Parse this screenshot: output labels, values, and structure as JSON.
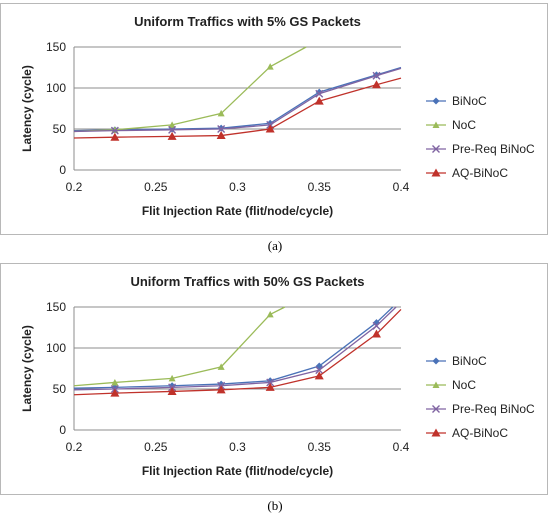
{
  "chart_data": [
    {
      "type": "line",
      "title": "Uniform Traffics with 5% GS Packets",
      "xlabel": "Flit Injection Rate (flit/node/cycle)",
      "ylabel": "Latency (cycle)",
      "xlim": [
        0.2,
        0.4
      ],
      "ylim": [
        0,
        150
      ],
      "xticks": [
        "0.2",
        "0.25",
        "0.3",
        "0.35",
        "0.4"
      ],
      "yticks": [
        "0",
        "50",
        "100",
        "150"
      ],
      "grid": "horizontal",
      "legend_position": "right",
      "series": [
        {
          "name": "BiNoC",
          "color": "#4a72b8",
          "marker": "diamond",
          "x": [
            0.2,
            0.225,
            0.26,
            0.29,
            0.32,
            0.35,
            0.385,
            0.4
          ],
          "y": [
            48,
            49,
            50,
            51,
            57,
            95,
            116,
            125
          ]
        },
        {
          "name": "NoC",
          "color": "#9bbb59",
          "marker": "triangle",
          "x": [
            0.2,
            0.225,
            0.26,
            0.29,
            0.32,
            0.342
          ],
          "y": [
            47,
            49,
            55,
            69,
            126,
            150
          ]
        },
        {
          "name": "Pre-Req BiNoC",
          "color": "#8064a2",
          "marker": "x",
          "x": [
            0.2,
            0.225,
            0.26,
            0.29,
            0.32,
            0.35,
            0.385,
            0.4
          ],
          "y": [
            47,
            48,
            49,
            50,
            55,
            93,
            115,
            124
          ]
        },
        {
          "name": "AQ-BiNoC",
          "color": "#c0322b",
          "marker": "triangle-filled",
          "x": [
            0.2,
            0.225,
            0.26,
            0.29,
            0.32,
            0.35,
            0.385,
            0.4
          ],
          "y": [
            39,
            40,
            41,
            42,
            50,
            84,
            104,
            112
          ]
        }
      ]
    },
    {
      "type": "line",
      "title": "Uniform Traffics with 50% GS Packets",
      "xlabel": "Flit Injection Rate (flit/node/cycle)",
      "ylabel": "Latency (cycle)",
      "xlim": [
        0.2,
        0.4
      ],
      "ylim": [
        0,
        150
      ],
      "xticks": [
        "0.2",
        "0.25",
        "0.3",
        "0.35",
        "0.4"
      ],
      "yticks": [
        "0",
        "50",
        "100",
        "150"
      ],
      "grid": "horizontal",
      "legend_position": "right",
      "series": [
        {
          "name": "BiNoC",
          "color": "#4a72b8",
          "marker": "diamond",
          "x": [
            0.2,
            0.225,
            0.26,
            0.29,
            0.32,
            0.35,
            0.385,
            0.395
          ],
          "y": [
            51,
            52,
            54,
            56,
            60,
            78,
            131,
            150
          ]
        },
        {
          "name": "NoC",
          "color": "#9bbb59",
          "marker": "triangle",
          "x": [
            0.2,
            0.225,
            0.26,
            0.29,
            0.32,
            0.329
          ],
          "y": [
            54,
            58,
            63,
            77,
            141,
            150
          ]
        },
        {
          "name": "Pre-Req BiNoC",
          "color": "#8064a2",
          "marker": "x",
          "x": [
            0.2,
            0.225,
            0.26,
            0.29,
            0.32,
            0.35,
            0.385,
            0.397
          ],
          "y": [
            49,
            50,
            52,
            54,
            58,
            73,
            127,
            150
          ]
        },
        {
          "name": "AQ-BiNoC",
          "color": "#c0322b",
          "marker": "triangle-filled",
          "x": [
            0.2,
            0.225,
            0.26,
            0.29,
            0.32,
            0.35,
            0.385,
            0.4
          ],
          "y": [
            43,
            45,
            47,
            49,
            52,
            66,
            117,
            147
          ]
        }
      ]
    }
  ],
  "captions": [
    "(a)",
    "(b)"
  ]
}
